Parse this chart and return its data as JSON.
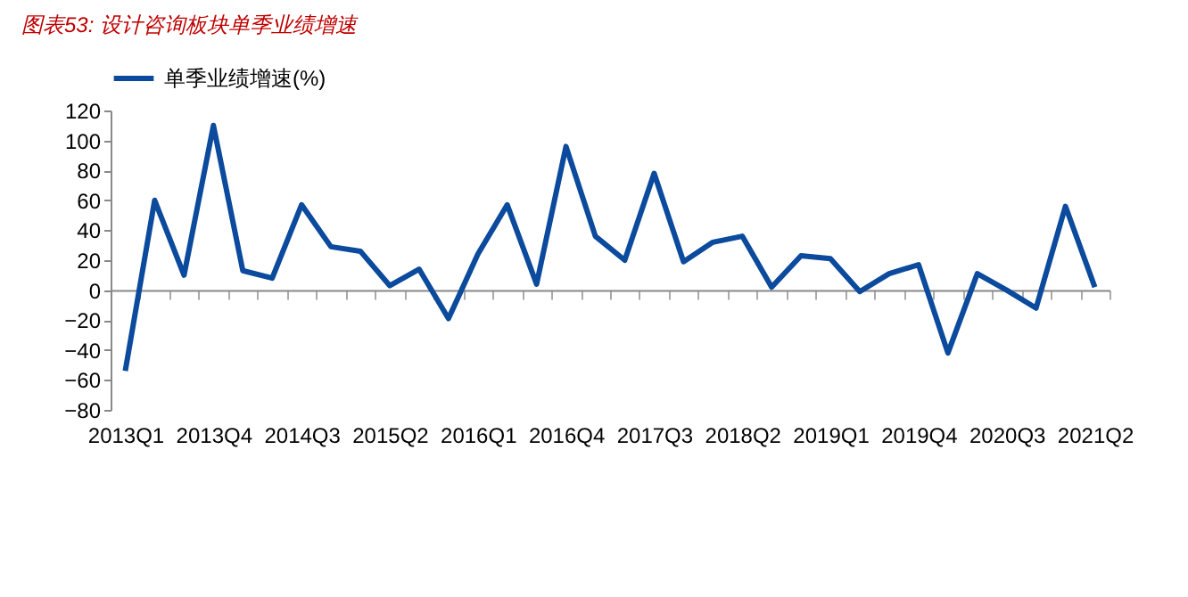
{
  "chart_data": {
    "type": "line",
    "title": "图表53: 设计咨询板块单季业绩增速",
    "categories": [
      "2013Q1",
      null,
      null,
      "2013Q4",
      null,
      null,
      "2014Q3",
      null,
      null,
      "2015Q2",
      null,
      null,
      "2016Q1",
      null,
      null,
      "2016Q4",
      null,
      null,
      "2017Q3",
      null,
      null,
      "2018Q2",
      null,
      null,
      "2019Q1",
      null,
      null,
      "2019Q4",
      null,
      null,
      "2020Q3",
      null,
      null,
      "2021Q2"
    ],
    "series": [
      {
        "name": "单季业绩增速(%)",
        "color": "#0b4a9c",
        "values": [
          -54,
          60,
          10,
          110,
          13,
          8,
          57,
          29,
          26,
          3,
          14,
          -19,
          24,
          57,
          4,
          96,
          36,
          20,
          78,
          19,
          32,
          36,
          2,
          23,
          21,
          -1,
          11,
          17,
          -42,
          11,
          0,
          -12,
          56,
          2
        ]
      }
    ],
    "ylim": [
      -80,
      120
    ],
    "yticks": [
      -80,
      -60,
      -40,
      -20,
      0,
      20,
      40,
      60,
      80,
      100,
      120
    ],
    "legend": "top",
    "marker": "none",
    "line_style": "solid"
  }
}
